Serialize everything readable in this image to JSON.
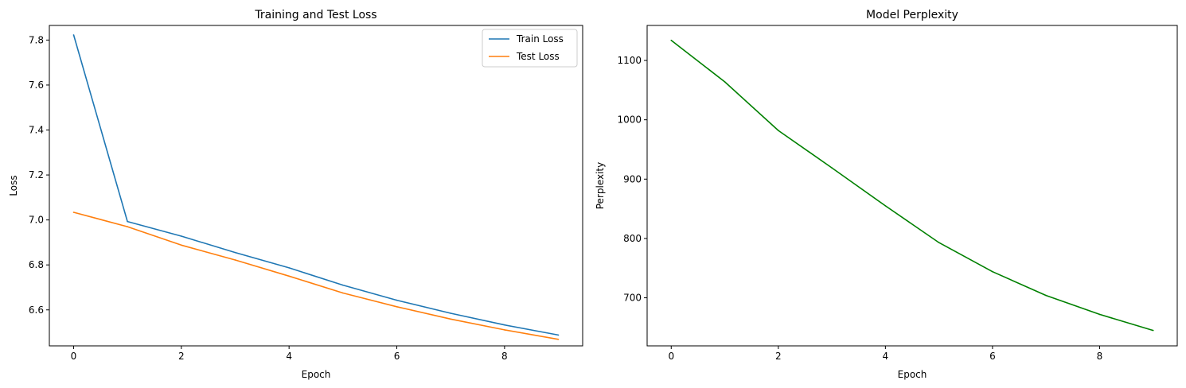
{
  "chart_data": [
    {
      "type": "line",
      "title": "Training and Test Loss",
      "xlabel": "Epoch",
      "ylabel": "Loss",
      "xlim": [
        -0.45,
        9.45
      ],
      "ylim": [
        6.44,
        7.865
      ],
      "x_ticks": [
        0,
        2,
        4,
        6,
        8
      ],
      "y_ticks": [
        6.6,
        6.8,
        7.0,
        7.2,
        7.4,
        7.6,
        7.8
      ],
      "x_tick_labels": [
        "0",
        "2",
        "4",
        "6",
        "8"
      ],
      "y_tick_labels": [
        "6.6",
        "6.8",
        "7.0",
        "7.2",
        "7.4",
        "7.6",
        "7.8"
      ],
      "x": [
        0,
        1,
        2,
        3,
        4,
        5,
        6,
        7,
        8,
        9
      ],
      "grid": false,
      "legend_position": "top-right",
      "series": [
        {
          "name": "Train Loss",
          "color": "#1f77b4",
          "values": [
            7.823,
            6.993,
            6.928,
            6.855,
            6.787,
            6.71,
            6.643,
            6.585,
            6.533,
            6.488
          ]
        },
        {
          "name": "Test Loss",
          "color": "#ff7f0e",
          "values": [
            7.034,
            6.97,
            6.888,
            6.822,
            6.75,
            6.675,
            6.614,
            6.559,
            6.511,
            6.469
          ]
        }
      ]
    },
    {
      "type": "line",
      "title": "Model Perplexity",
      "xlabel": "Epoch",
      "ylabel": "Perplexity",
      "xlim": [
        -0.45,
        9.45
      ],
      "ylim": [
        619,
        1159
      ],
      "x_ticks": [
        0,
        2,
        4,
        6,
        8
      ],
      "y_ticks": [
        700,
        800,
        900,
        1000,
        1100
      ],
      "x_tick_labels": [
        "0",
        "2",
        "4",
        "6",
        "8"
      ],
      "y_tick_labels": [
        "700",
        "800",
        "900",
        "1000",
        "1100"
      ],
      "x": [
        0,
        1,
        2,
        3,
        4,
        5,
        6,
        7,
        8,
        9
      ],
      "grid": false,
      "series": [
        {
          "color": "#008000",
          "values": [
            1134,
            1064,
            982,
            919,
            855,
            793,
            744,
            704,
            672,
            645
          ]
        }
      ]
    }
  ]
}
